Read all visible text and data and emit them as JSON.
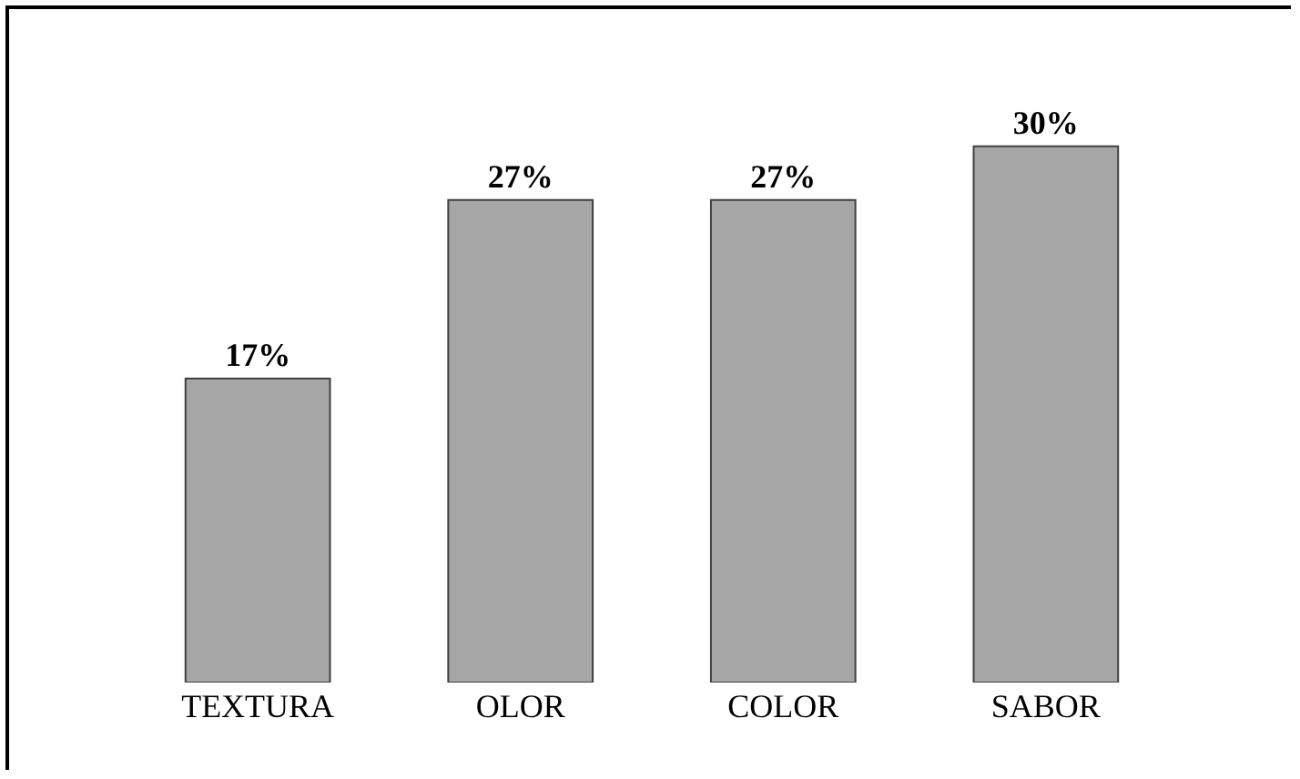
{
  "chart_data": {
    "type": "bar",
    "categories": [
      "TEXTURA",
      "OLOR",
      "COLOR",
      "SABOR"
    ],
    "values": [
      17,
      27,
      27,
      30
    ],
    "value_labels": [
      "17%",
      "27%",
      "27%",
      "30%"
    ],
    "color": "#a6a6a6",
    "grid": false,
    "legend": false
  }
}
